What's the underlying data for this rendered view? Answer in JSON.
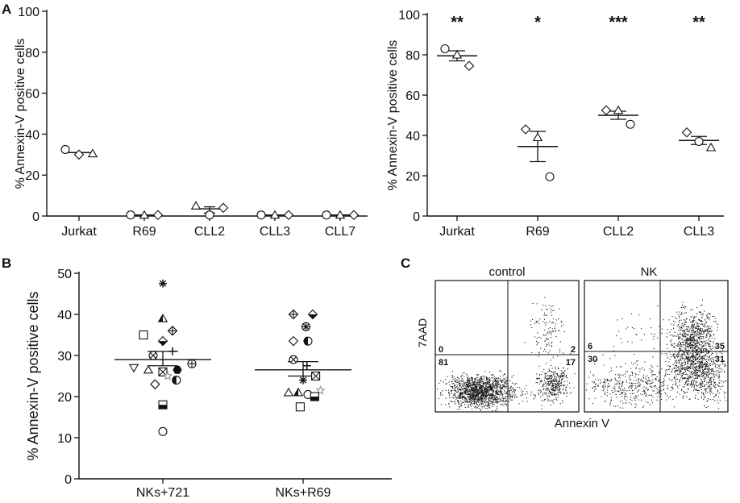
{
  "panels": {
    "A": "A",
    "B": "B",
    "C": "C"
  },
  "chart_data": [
    {
      "id": "A-left",
      "type": "scatter",
      "ylabel": "% Annexin-V positive cells",
      "ylim": [
        0,
        100
      ],
      "yticks": [
        "0",
        "20",
        "40",
        "60",
        "80",
        "100"
      ],
      "categories": [
        "Jurkat",
        "R69",
        "CLL2",
        "CLL3",
        "CLL7"
      ],
      "groups": [
        {
          "category": "Jurkat",
          "mean": 31,
          "points": [
            {
              "marker": "circle",
              "value": 32.5
            },
            {
              "marker": "diamond",
              "value": 30
            },
            {
              "marker": "triangle",
              "value": 30.5
            }
          ]
        },
        {
          "category": "R69",
          "mean": 0.5,
          "points": [
            {
              "marker": "circle",
              "value": 0.5
            },
            {
              "marker": "triangle",
              "value": 0.5
            },
            {
              "marker": "diamond",
              "value": 0.5
            }
          ]
        },
        {
          "category": "CLL2",
          "mean": 3.5,
          "sem_low": 1.5,
          "sem_high": 4.5,
          "points": [
            {
              "marker": "triangle",
              "value": 5
            },
            {
              "marker": "circle",
              "value": 0.5
            },
            {
              "marker": "diamond",
              "value": 4
            }
          ]
        },
        {
          "category": "CLL3",
          "mean": 0.5,
          "points": [
            {
              "marker": "circle",
              "value": 0.5
            },
            {
              "marker": "triangle",
              "value": 0.5
            },
            {
              "marker": "diamond",
              "value": 0.5
            }
          ]
        },
        {
          "category": "CLL7",
          "mean": 0.5,
          "points": [
            {
              "marker": "circle",
              "value": 0.5
            },
            {
              "marker": "triangle",
              "value": 0.5
            },
            {
              "marker": "diamond",
              "value": 0.5
            }
          ]
        }
      ]
    },
    {
      "id": "A-right",
      "type": "scatter",
      "ylabel": "% Annexin-V positive cells",
      "ylim": [
        0,
        100
      ],
      "yticks": [
        "0",
        "20",
        "40",
        "60",
        "80",
        "100"
      ],
      "categories": [
        "Jurkat",
        "R69",
        "CLL2",
        "CLL3"
      ],
      "significance": [
        "**",
        "*",
        "***",
        "**"
      ],
      "groups": [
        {
          "category": "Jurkat",
          "mean": 79.5,
          "sem_low": 77,
          "sem_high": 82,
          "points": [
            {
              "marker": "circle",
              "value": 83
            },
            {
              "marker": "triangle",
              "value": 80
            },
            {
              "marker": "diamond",
              "value": 74.5
            }
          ]
        },
        {
          "category": "R69",
          "mean": 34.5,
          "sem_low": 27,
          "sem_high": 42,
          "points": [
            {
              "marker": "diamond",
              "value": 43
            },
            {
              "marker": "triangle",
              "value": 39
            },
            {
              "marker": "circle",
              "value": 19.5
            }
          ]
        },
        {
          "category": "CLL2",
          "mean": 50,
          "sem_low": 48,
          "sem_high": 52,
          "points": [
            {
              "marker": "diamond",
              "value": 52.5
            },
            {
              "marker": "triangle",
              "value": 52.5
            },
            {
              "marker": "circle",
              "value": 45.5
            }
          ]
        },
        {
          "category": "CLL3",
          "mean": 37.5,
          "sem_low": 35.5,
          "sem_high": 39.5,
          "points": [
            {
              "marker": "diamond",
              "value": 41.5
            },
            {
              "marker": "circle",
              "value": 37
            },
            {
              "marker": "triangle",
              "value": 34
            }
          ]
        }
      ]
    },
    {
      "id": "B",
      "type": "scatter",
      "ylabel": "% Annexin-V positive cells",
      "ylim": [
        0,
        50
      ],
      "yticks": [
        "0",
        "10",
        "20",
        "30",
        "40",
        "50"
      ],
      "categories": [
        "NKs+721",
        "NKs+R69"
      ],
      "groups": [
        {
          "category": "NKs+721",
          "mean": 29,
          "sem_low": 27.5,
          "sem_high": 31,
          "points": [
            {
              "marker": "asterisk",
              "value": 47.5,
              "offset": 0
            },
            {
              "marker": "halftriangle",
              "value": 39,
              "offset": 0
            },
            {
              "marker": "diamondcross",
              "value": 36,
              "offset": 1
            },
            {
              "marker": "square",
              "value": 35,
              "offset": -2
            },
            {
              "marker": "halfdiamond",
              "value": 33.5,
              "offset": 0
            },
            {
              "marker": "plus",
              "value": 31,
              "offset": 1
            },
            {
              "marker": "circlex",
              "value": 30,
              "offset": -1
            },
            {
              "marker": "circleplus",
              "value": 28,
              "offset": 3
            },
            {
              "marker": "invtriangle",
              "value": 27,
              "offset": -3
            },
            {
              "marker": "triangle",
              "value": 26.5,
              "offset": -1.5
            },
            {
              "marker": "squarex",
              "value": 26,
              "offset": 0
            },
            {
              "marker": "hexagon",
              "value": 26.5,
              "offset": 1.5
            },
            {
              "marker": "star",
              "value": 25,
              "offset": 0.5
            },
            {
              "marker": "diamond",
              "value": 23,
              "offset": -0.8
            },
            {
              "marker": "halfcircle",
              "value": 24,
              "offset": 1.4
            },
            {
              "marker": "halfsquare",
              "value": 18,
              "offset": 0
            },
            {
              "marker": "circle",
              "value": 11.5,
              "offset": 0
            }
          ]
        },
        {
          "category": "NKs+R69",
          "mean": 26.5,
          "sem_low": 25,
          "sem_high": 28.5,
          "points": [
            {
              "marker": "diamondcross",
              "value": 40,
              "offset": -1
            },
            {
              "marker": "halfdiamond",
              "value": 40,
              "offset": 1
            },
            {
              "marker": "circleasterisk",
              "value": 37,
              "offset": 0.3
            },
            {
              "marker": "diamond",
              "value": 33.5,
              "offset": -1
            },
            {
              "marker": "halfcircle",
              "value": 33.5,
              "offset": 0.5
            },
            {
              "marker": "circlex",
              "value": 29,
              "offset": -1
            },
            {
              "marker": "plus",
              "value": 27.5,
              "offset": 0.4
            },
            {
              "marker": "squarex",
              "value": 25,
              "offset": 1.3
            },
            {
              "marker": "asterisk",
              "value": 24,
              "offset": 0
            },
            {
              "marker": "triangle",
              "value": 21,
              "offset": -1.5
            },
            {
              "marker": "halftriangle",
              "value": 21,
              "offset": -0.5
            },
            {
              "marker": "circle",
              "value": 20.5,
              "offset": 0.5
            },
            {
              "marker": "star",
              "value": 21.5,
              "offset": 1.8
            },
            {
              "marker": "halfsquare",
              "value": 20,
              "offset": 1.2
            },
            {
              "marker": "square",
              "value": 17.5,
              "offset": -0.3
            }
          ]
        }
      ]
    },
    {
      "id": "C",
      "type": "scatter",
      "xlabel": "Annexin V",
      "ylabel": "7AAD",
      "plots": [
        {
          "title": "control",
          "quadrants": {
            "upper_left": "0",
            "upper_right": "2",
            "lower_left": "81",
            "lower_right": "17"
          }
        },
        {
          "title": "NK",
          "quadrants": {
            "upper_left": "6",
            "upper_right": "35",
            "lower_left": "30",
            "lower_right": "31"
          }
        }
      ]
    }
  ]
}
